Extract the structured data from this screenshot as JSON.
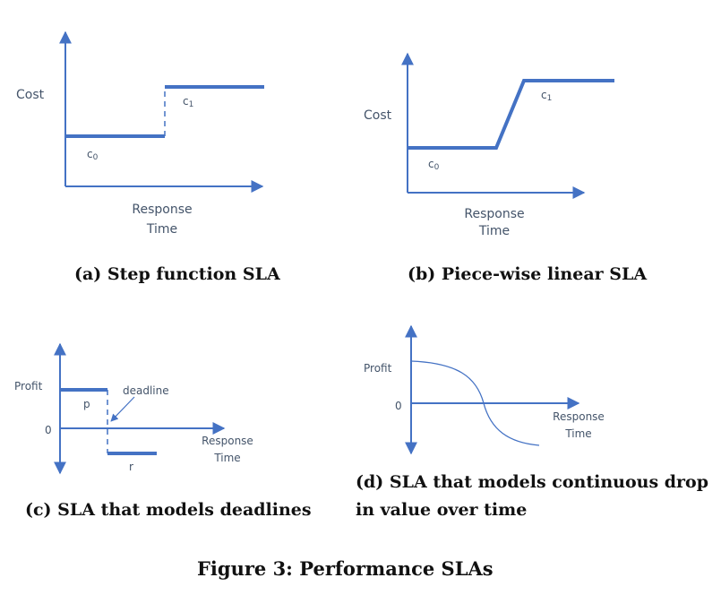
{
  "panel_a": {
    "y_label": "Cost",
    "x_label_line1": "Response",
    "x_label_line2": "Time",
    "level_low_label": "c",
    "level_low_sub": "0",
    "level_high_label": "c",
    "level_high_sub": "1",
    "caption": "(a) Step function SLA"
  },
  "panel_b": {
    "y_label": "Cost",
    "x_label_line1": "Response",
    "x_label_line2": "Time",
    "level_low_label": "c",
    "level_low_sub": "0",
    "level_high_label": "c",
    "level_high_sub": "1",
    "caption": "(b) Piece-wise linear SLA"
  },
  "panel_c": {
    "y_label": "Profit",
    "zero_label": "0",
    "x_label_line1": "Response",
    "x_label_line2": "Time",
    "level_pos_label": "p",
    "level_neg_label": "r",
    "deadline_label": "deadline",
    "caption": "(c) SLA that models deadlines"
  },
  "panel_d": {
    "y_label": "Profit",
    "zero_label": "0",
    "x_label_line1": "Response",
    "x_label_line2": "Time",
    "caption_line1": "(d) SLA that models continuous drop",
    "caption_line2": "in value over time"
  },
  "figure_caption": "Figure 3: Performance SLAs",
  "colors": {
    "line": "#4472c4",
    "text": "#44546a"
  }
}
